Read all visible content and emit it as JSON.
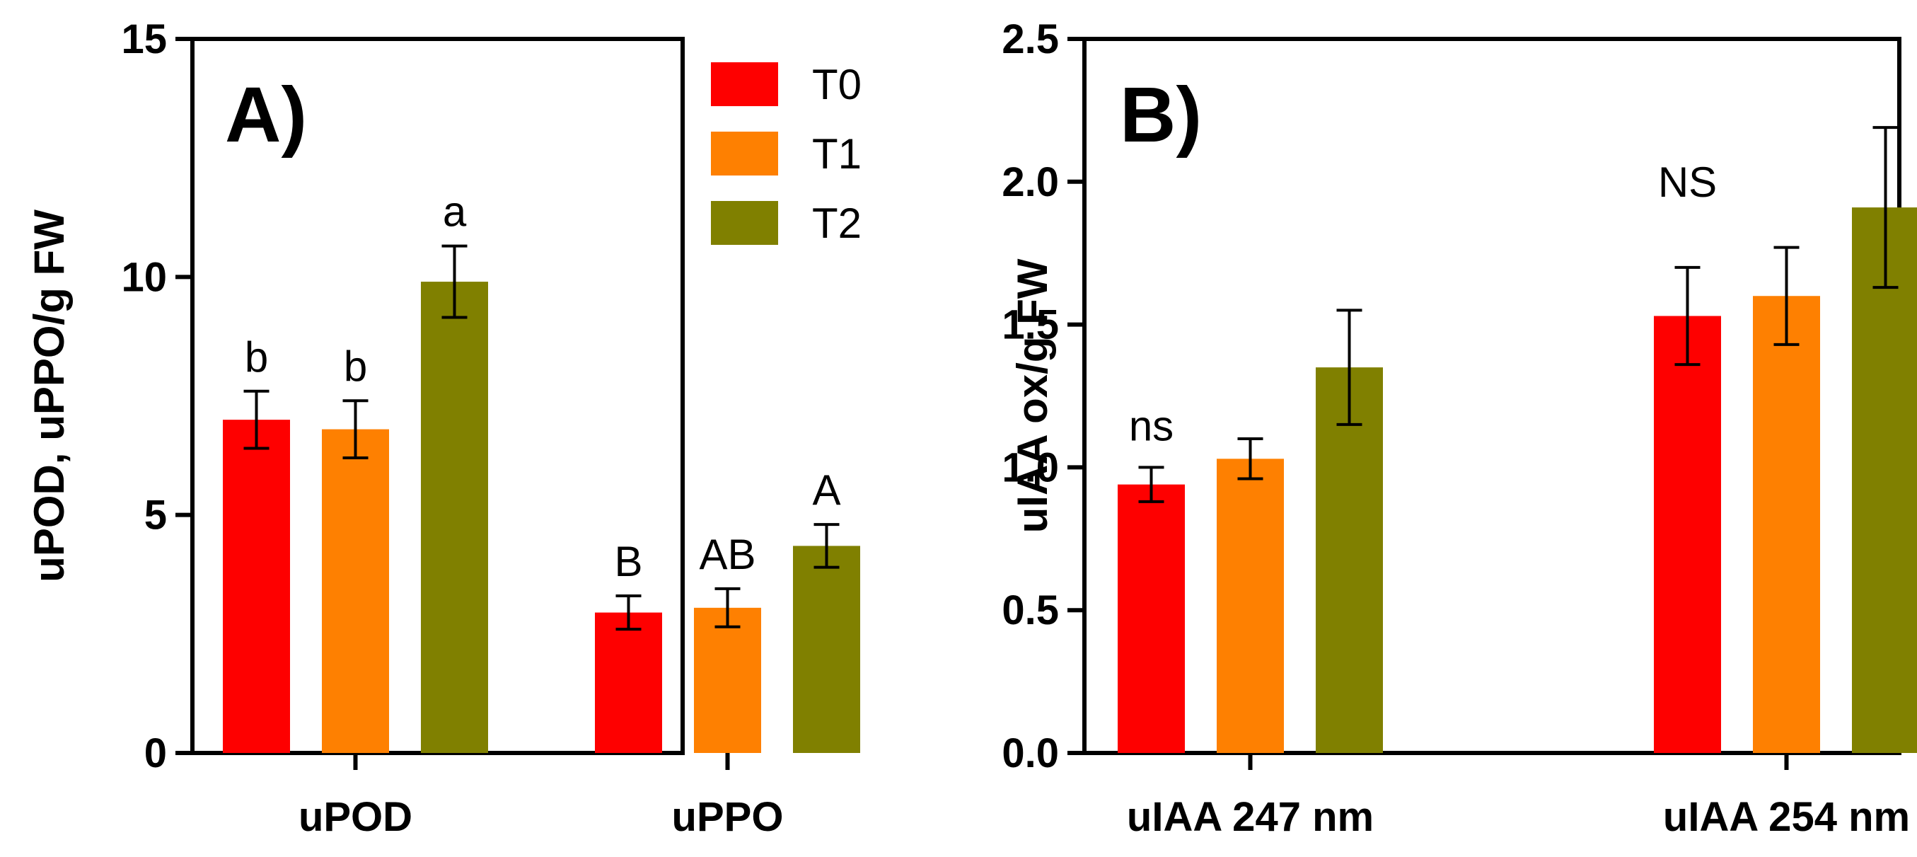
{
  "colors": {
    "T0": "#fe0000",
    "T1": "#fe8001",
    "T2": "#808000"
  },
  "chart_data": [
    {
      "panel_label": "A)",
      "type": "bar",
      "ylabel": "uPOD, uPPO/g FW",
      "ylim": [
        0,
        15
      ],
      "yticks": [
        0,
        5,
        10,
        15
      ],
      "ytick_labels": [
        "0",
        "5",
        "10",
        "15"
      ],
      "categories": [
        "uPOD",
        "uPPO"
      ],
      "series": [
        {
          "name": "T0",
          "values": [
            7.0,
            2.95
          ],
          "errors": [
            0.6,
            0.35
          ],
          "sig": [
            "b",
            "B"
          ]
        },
        {
          "name": "T1",
          "values": [
            6.8,
            3.05
          ],
          "errors": [
            0.6,
            0.4
          ],
          "sig": [
            "b",
            "AB"
          ]
        },
        {
          "name": "T2",
          "values": [
            9.9,
            4.35
          ],
          "errors": [
            0.75,
            0.45
          ],
          "sig": [
            "a",
            "A"
          ]
        }
      ],
      "legend": {
        "position": "top-right",
        "entries": [
          "T0",
          "T1",
          "T2"
        ]
      }
    },
    {
      "panel_label": "B)",
      "type": "bar",
      "ylabel": "uIAA ox/g FW",
      "ylim": [
        0,
        2.5
      ],
      "yticks": [
        0,
        0.5,
        1.0,
        1.5,
        2.0,
        2.5
      ],
      "ytick_labels": [
        "0.0",
        "0.5",
        "1.0",
        "1.5",
        "2.0",
        "2.5"
      ],
      "categories": [
        "uIAA 247 nm",
        "uIAA 254 nm"
      ],
      "series": [
        {
          "name": "T0",
          "values": [
            0.94,
            1.53
          ],
          "errors": [
            0.06,
            0.17
          ]
        },
        {
          "name": "T1",
          "values": [
            1.03,
            1.6
          ],
          "errors": [
            0.07,
            0.17
          ]
        },
        {
          "name": "T2",
          "values": [
            1.35,
            1.91
          ],
          "errors": [
            0.2,
            0.28
          ]
        }
      ],
      "group_annotations": [
        "ns",
        "NS"
      ]
    }
  ]
}
